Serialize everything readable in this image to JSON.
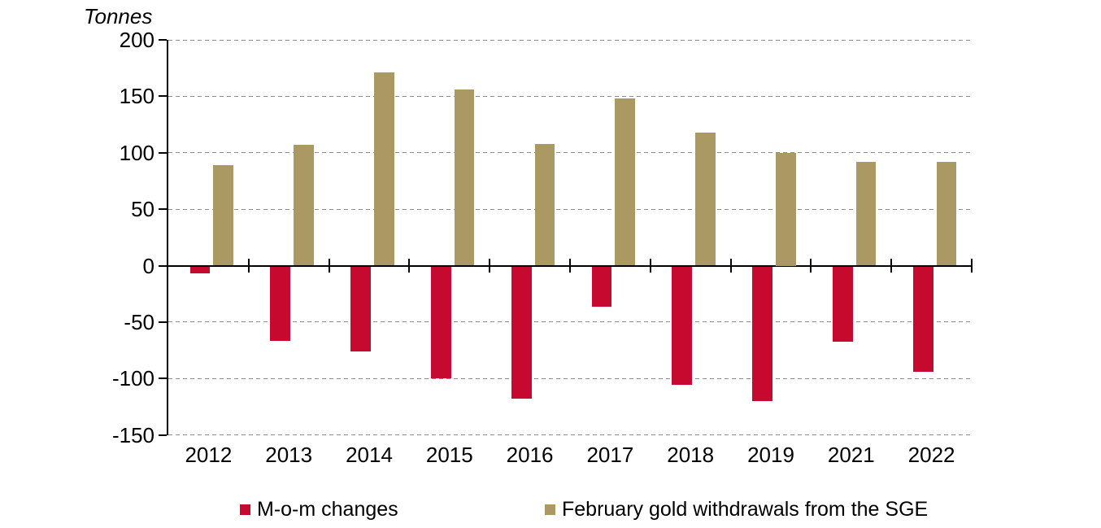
{
  "chart": {
    "unit_label": "Tonnes"
  },
  "chart_data": {
    "type": "bar",
    "title": "",
    "ylabel": "Tonnes",
    "xlabel": "",
    "categories": [
      "2012",
      "2013",
      "2014",
      "2015",
      "2016",
      "2017",
      "2018",
      "2019",
      "2021",
      "2022"
    ],
    "series": [
      {
        "name": "M-o-m changes",
        "color": "#c5092f",
        "values": [
          -6,
          -66,
          -75,
          -99,
          -117,
          -36,
          -105,
          -119,
          -67,
          -93
        ]
      },
      {
        "name": "February gold withdrawals from the SGE",
        "color": "#ab9964",
        "values": [
          89,
          107,
          171,
          156,
          108,
          148,
          118,
          100,
          92,
          92
        ]
      }
    ],
    "yticks": [
      200,
      150,
      100,
      50,
      0,
      -50,
      -100,
      -150
    ],
    "ylim": [
      -150,
      200
    ],
    "grid": "horizontal-dashed",
    "legend_position": "bottom"
  },
  "colors": {
    "axis": "#000000",
    "gridline": "#8c8c8c",
    "background": "#ffffff"
  }
}
